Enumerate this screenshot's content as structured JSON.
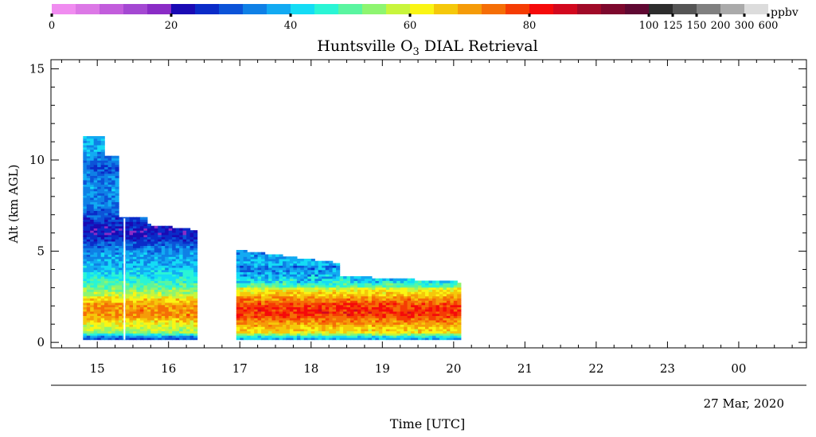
{
  "colorbar": {
    "colors": [
      "#f08cf0",
      "#dc78e6",
      "#c25ddc",
      "#a448d2",
      "#8a2cc6",
      "#1a0ab4",
      "#0a2bc8",
      "#0c53d8",
      "#0f80e6",
      "#12aaf2",
      "#14dcf5",
      "#2af5d5",
      "#5af5a0",
      "#8ef570",
      "#c8f53c",
      "#faf514",
      "#f5c80a",
      "#f59b08",
      "#f56e06",
      "#f53c04",
      "#f50a0a",
      "#d2081e",
      "#a00a28",
      "#7d082d",
      "#5f0832",
      "#2d2d2d",
      "#555555",
      "#808080",
      "#aaaaaa",
      "#dcdcdc"
    ],
    "tick_labels": [
      "0",
      "20",
      "40",
      "60",
      "80",
      "100",
      "125",
      "150",
      "200",
      "300",
      "600"
    ],
    "unit": "ppbv"
  },
  "title": "Huntsville O",
  "title_sub": "3",
  "title_rest": " DIAL Retrieval",
  "y_axis": {
    "label": "Alt (km AGL)",
    "ticks": [
      "0",
      "5",
      "10",
      "15"
    ]
  },
  "x_axis": {
    "ticks": [
      "15",
      "16",
      "17",
      "18",
      "19",
      "20",
      "21",
      "22",
      "23",
      "00"
    ],
    "label": "Time [UTC]",
    "date": "27 Mar, 2020"
  },
  "chart_data": {
    "type": "heatmap",
    "title": "Huntsville O3 DIAL Retrieval",
    "xlabel": "Time [UTC]",
    "ylabel": "Alt (km AGL)",
    "date": "27 Mar, 2020",
    "x_range_hours": [
      14.35,
      24.95
    ],
    "y_range_km": [
      -0.3,
      15.5
    ],
    "color_scale": {
      "variable": "O3",
      "unit": "ppbv",
      "ticks": [
        0,
        20,
        40,
        60,
        80,
        100,
        125,
        150,
        200,
        300,
        600
      ]
    },
    "data_segments": [
      {
        "time_range": [
          "14.80",
          "15.10"
        ],
        "alt_top_km": 11.3
      },
      {
        "time_range": [
          "15.10",
          "15.30"
        ],
        "alt_top_km": 10.2
      },
      {
        "time_range": [
          "15.30",
          "15.70"
        ],
        "alt_top_km": 6.8
      },
      {
        "time_range": [
          "15.70",
          "16.40"
        ],
        "alt_top_km": 6.2
      },
      {
        "time_range": [
          "16.95",
          "18.40"
        ],
        "alt_top_km": 4.4
      },
      {
        "time_range": [
          "18.40",
          "20.10"
        ],
        "alt_top_km": 3.4
      }
    ],
    "ozone_profile_ppbv": [
      {
        "alt_km": 0.2,
        "value": 30
      },
      {
        "alt_km": 0.5,
        "value": 55
      },
      {
        "alt_km": 1.0,
        "value": 62
      },
      {
        "alt_km": 1.5,
        "value": 72
      },
      {
        "alt_km": 2.0,
        "value": 70
      },
      {
        "alt_km": 2.5,
        "value": 60
      },
      {
        "alt_km": 3.0,
        "value": 50
      },
      {
        "alt_km": 3.5,
        "value": 45
      },
      {
        "alt_km": 4.0,
        "value": 40
      },
      {
        "alt_km": 4.5,
        "value": 38
      },
      {
        "alt_km": 5.0,
        "value": 35
      },
      {
        "alt_km": 5.5,
        "value": 28
      },
      {
        "alt_km": 6.0,
        "value": 22
      },
      {
        "alt_km": 6.5,
        "value": 26
      },
      {
        "alt_km": 7.5,
        "value": 34
      },
      {
        "alt_km": 8.5,
        "value": 36
      },
      {
        "alt_km": 9.5,
        "value": 30
      },
      {
        "alt_km": 10.5,
        "value": 38
      },
      {
        "alt_km": 11.3,
        "value": 40
      }
    ]
  }
}
